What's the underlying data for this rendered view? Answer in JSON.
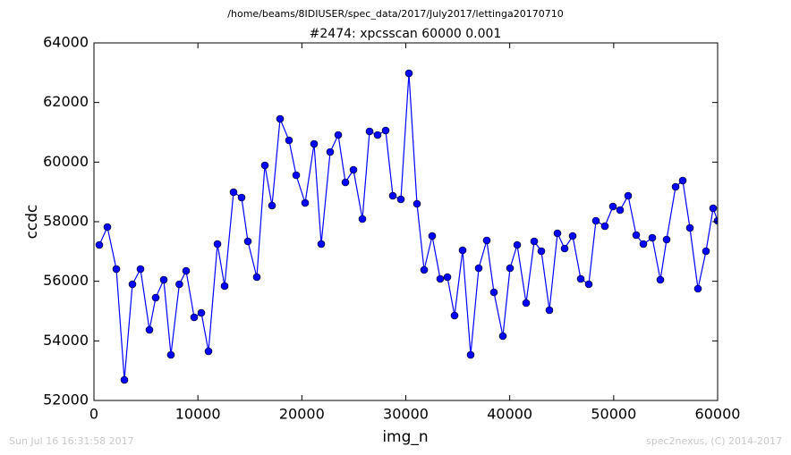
{
  "suptitle": "/home/beams/8IDIUSER/spec_data/2017/July2017/lettinga20170710",
  "chart_data": {
    "type": "line",
    "title": "#2474: xpcsscan 60000 0.001",
    "x_label": "img_n",
    "y_label": "ccdc",
    "xlim": [
      0,
      60000
    ],
    "ylim": [
      52000,
      64000
    ],
    "xticks": [
      0,
      10000,
      20000,
      30000,
      40000,
      50000,
      60000
    ],
    "yticks": [
      52000,
      54000,
      56000,
      58000,
      60000,
      62000,
      64000
    ],
    "grid": false,
    "color": "#0000ff",
    "x": [
      516,
      1291,
      2152,
      2927,
      3702,
      4476,
      5337,
      5940,
      6714,
      7403,
      8212,
      8866,
      9641,
      10330,
      11019,
      11880,
      12568,
      13429,
      14204,
      14806,
      15667,
      16442,
      17131,
      17905,
      18766,
      19455,
      20316,
      21176,
      21865,
      22726,
      23501,
      24190,
      24964,
      25825,
      26514,
      27288,
      28063,
      28752,
      29526,
      30301,
      31076,
      31764,
      32539,
      33314,
      34003,
      34691,
      35466,
      36241,
      37015,
      37790,
      38479,
      39340,
      40029,
      40717,
      41578,
      42353,
      43042,
      43816,
      44591,
      45280,
      46055,
      46830,
      47604,
      48293,
      49154,
      49929,
      50617,
      51392,
      52167,
      52856,
      53716,
      54491,
      55094,
      55955,
      56643,
      57332,
      58107,
      58882,
      59570,
      60000
    ],
    "values": [
      57220,
      57820,
      56410,
      52690,
      55900,
      56410,
      54370,
      55450,
      56050,
      53530,
      55900,
      56350,
      54790,
      54940,
      53650,
      57250,
      55840,
      58990,
      58810,
      57340,
      56140,
      59890,
      58540,
      61450,
      60730,
      59560,
      58630,
      60610,
      57250,
      60340,
      60910,
      59320,
      59740,
      58090,
      61030,
      60910,
      61060,
      58870,
      58750,
      62980,
      58600,
      56380,
      57520,
      56080,
      56140,
      54850,
      57040,
      53530,
      56440,
      57370,
      55630,
      54160,
      56440,
      57220,
      55270,
      57340,
      57010,
      55030,
      57610,
      57100,
      57520,
      56080,
      55900,
      58030,
      57850,
      58510,
      58390,
      58870,
      57550,
      57250,
      57460,
      56050,
      57400,
      59170,
      59380,
      57790,
      55750,
      57010,
      58450,
      58030
    ]
  },
  "footer_left": "Sun Jul 16 16:31:58 2017",
  "footer_right": "spec2nexus, (C) 2014-2017"
}
